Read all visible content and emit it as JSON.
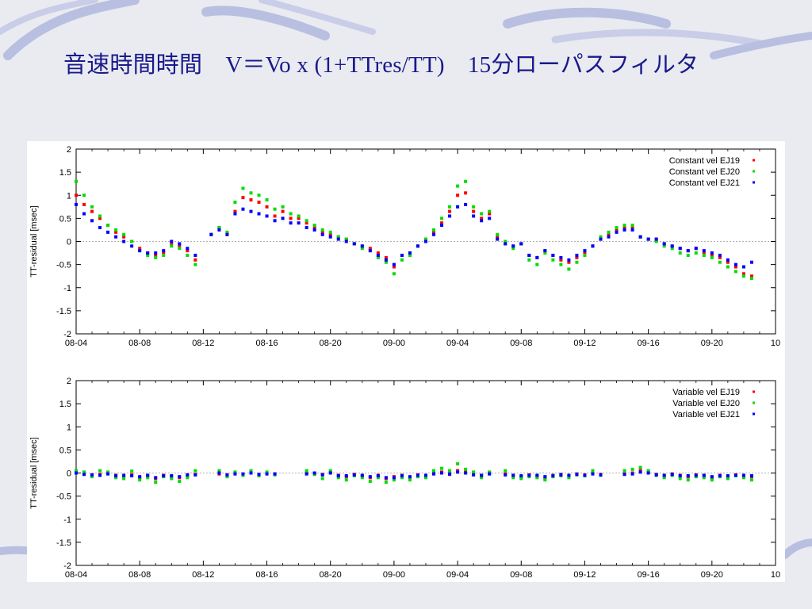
{
  "slide": {
    "title": "音速時間時間　V＝Vo x (1+TTres/TT)　15分ローパスフィルタ"
  },
  "colors": {
    "EJ19": "#ff0000",
    "EJ20": "#00dd00",
    "EJ21": "#0000ff",
    "title": "#1a1a8c",
    "zero_line": "#999999"
  },
  "chart_data": [
    {
      "type": "scatter",
      "xlabel": "",
      "ylabel": "TT-residual [msec]",
      "ylim": [
        -2,
        2
      ],
      "yticks": [
        "2",
        "1.5",
        "1",
        "0.5",
        "0",
        "-0.5",
        "-1",
        "-1.5",
        "-2"
      ],
      "xticks": [
        "08-04",
        "08-08",
        "08-12",
        "08-16",
        "08-20",
        "09-00",
        "09-04",
        "09-08",
        "09-12",
        "09-16",
        "09-20",
        "10"
      ],
      "zero_line": "dotted",
      "legend_position": "top-right",
      "series": [
        {
          "name": "Constant vel EJ19",
          "x": [
            0,
            0.5,
            1,
            1.5,
            2,
            2.5,
            3,
            3.5,
            4,
            4.5,
            5,
            5.5,
            6,
            6.5,
            7,
            7.5,
            8.5,
            9,
            9.5,
            10,
            10.5,
            11,
            11.5,
            12,
            12.5,
            13,
            13.5,
            14,
            14.5,
            15,
            15.5,
            16,
            16.5,
            17,
            17.5,
            18,
            18.5,
            19,
            19.5,
            20,
            20.5,
            21,
            21.5,
            22,
            22.5,
            23,
            23.5,
            24,
            24.5,
            25,
            25.5,
            26,
            26.5,
            27,
            27.5,
            28,
            28.5,
            29,
            29.5,
            30,
            30.5,
            31,
            31.5,
            32,
            32.5,
            33,
            33.5,
            34,
            34.5,
            35,
            35.5,
            36,
            36.5,
            37,
            37.5,
            38,
            38.5,
            39,
            39.5,
            40,
            40.5,
            41,
            41.5,
            42,
            42.5
          ],
          "y": [
            1.0,
            0.8,
            0.65,
            0.5,
            0.35,
            0.2,
            0.1,
            0.0,
            -0.15,
            -0.25,
            -0.3,
            -0.25,
            -0.05,
            -0.1,
            -0.2,
            -0.4,
            0.15,
            0.3,
            0.15,
            0.65,
            0.95,
            0.9,
            0.85,
            0.75,
            0.55,
            0.65,
            0.5,
            0.5,
            0.4,
            0.3,
            0.2,
            0.15,
            0.1,
            0.05,
            -0.05,
            -0.1,
            -0.15,
            -0.25,
            -0.35,
            -0.55,
            -0.3,
            -0.25,
            -0.1,
            0.05,
            0.2,
            0.4,
            0.65,
            1.0,
            1.05,
            0.65,
            0.5,
            0.6,
            0.1,
            -0.05,
            -0.1,
            -0.05,
            -0.3,
            -0.35,
            -0.2,
            -0.3,
            -0.4,
            -0.45,
            -0.35,
            -0.25,
            -0.1,
            0.05,
            0.15,
            0.25,
            0.3,
            0.3,
            0.1,
            0.05,
            0.05,
            -0.05,
            -0.1,
            -0.15,
            -0.2,
            -0.15,
            -0.25,
            -0.3,
            -0.35,
            -0.45,
            -0.55,
            -0.7,
            -0.75
          ]
        },
        {
          "name": "Constant vel EJ20",
          "x": [
            0,
            0.5,
            1,
            1.5,
            2,
            2.5,
            3,
            3.5,
            4,
            4.5,
            5,
            5.5,
            6,
            6.5,
            7,
            7.5,
            8.5,
            9,
            9.5,
            10,
            10.5,
            11,
            11.5,
            12,
            12.5,
            13,
            13.5,
            14,
            14.5,
            15,
            15.5,
            16,
            16.5,
            17,
            17.5,
            18,
            18.5,
            19,
            19.5,
            20,
            20.5,
            21,
            21.5,
            22,
            22.5,
            23,
            23.5,
            24,
            24.5,
            25,
            25.5,
            26,
            26.5,
            27,
            27.5,
            28,
            28.5,
            29,
            29.5,
            30,
            30.5,
            31,
            31.5,
            32,
            32.5,
            33,
            33.5,
            34,
            34.5,
            35,
            35.5,
            36,
            36.5,
            37,
            37.5,
            38,
            38.5,
            39,
            39.5,
            40,
            40.5,
            41,
            41.5,
            42,
            42.5
          ],
          "y": [
            1.3,
            1.0,
            0.75,
            0.55,
            0.35,
            0.25,
            0.15,
            0.0,
            -0.2,
            -0.3,
            -0.35,
            -0.3,
            -0.1,
            -0.15,
            -0.3,
            -0.5,
            0.15,
            0.3,
            0.2,
            0.85,
            1.15,
            1.05,
            1.0,
            0.9,
            0.7,
            0.75,
            0.6,
            0.55,
            0.45,
            0.35,
            0.25,
            0.2,
            0.1,
            0.05,
            -0.05,
            -0.15,
            -0.2,
            -0.35,
            -0.45,
            -0.7,
            -0.4,
            -0.3,
            -0.1,
            0.05,
            0.25,
            0.5,
            0.75,
            1.2,
            1.3,
            0.75,
            0.6,
            0.65,
            0.15,
            0.0,
            -0.15,
            -0.05,
            -0.4,
            -0.5,
            -0.25,
            -0.4,
            -0.5,
            -0.6,
            -0.45,
            -0.3,
            -0.1,
            0.1,
            0.2,
            0.3,
            0.35,
            0.35,
            0.1,
            0.05,
            0.0,
            -0.1,
            -0.15,
            -0.25,
            -0.3,
            -0.25,
            -0.3,
            -0.35,
            -0.45,
            -0.55,
            -0.65,
            -0.75,
            -0.8
          ]
        },
        {
          "name": "Constant vel EJ21",
          "x": [
            0,
            0.5,
            1,
            1.5,
            2,
            2.5,
            3,
            3.5,
            4,
            4.5,
            5,
            5.5,
            6,
            6.5,
            7,
            7.5,
            8.5,
            9,
            9.5,
            10,
            10.5,
            11,
            11.5,
            12,
            12.5,
            13,
            13.5,
            14,
            14.5,
            15,
            15.5,
            16,
            16.5,
            17,
            17.5,
            18,
            18.5,
            19,
            19.5,
            20,
            20.5,
            21,
            21.5,
            22,
            22.5,
            23,
            23.5,
            24,
            24.5,
            25,
            25.5,
            26,
            26.5,
            27,
            27.5,
            28,
            28.5,
            29,
            29.5,
            30,
            30.5,
            31,
            31.5,
            32,
            32.5,
            33,
            33.5,
            34,
            34.5,
            35,
            35.5,
            36,
            36.5,
            37,
            37.5,
            38,
            38.5,
            39,
            39.5,
            40,
            40.5,
            41,
            41.5,
            42,
            42.5
          ],
          "y": [
            0.8,
            0.6,
            0.45,
            0.3,
            0.2,
            0.1,
            0.0,
            -0.1,
            -0.2,
            -0.25,
            -0.25,
            -0.2,
            0.0,
            -0.05,
            -0.15,
            -0.3,
            0.15,
            0.25,
            0.15,
            0.6,
            0.7,
            0.65,
            0.6,
            0.55,
            0.45,
            0.5,
            0.4,
            0.4,
            0.3,
            0.25,
            0.15,
            0.1,
            0.05,
            0.0,
            -0.05,
            -0.1,
            -0.2,
            -0.3,
            -0.4,
            -0.5,
            -0.3,
            -0.25,
            -0.1,
            0.0,
            0.15,
            0.35,
            0.55,
            0.75,
            0.8,
            0.55,
            0.45,
            0.5,
            0.05,
            -0.05,
            -0.1,
            -0.05,
            -0.3,
            -0.35,
            -0.2,
            -0.3,
            -0.35,
            -0.4,
            -0.3,
            -0.2,
            -0.1,
            0.05,
            0.1,
            0.2,
            0.25,
            0.25,
            0.1,
            0.05,
            0.05,
            -0.05,
            -0.1,
            -0.15,
            -0.2,
            -0.15,
            -0.2,
            -0.25,
            -0.3,
            -0.4,
            -0.5,
            -0.55,
            -0.45
          ]
        }
      ]
    },
    {
      "type": "scatter",
      "xlabel": "",
      "ylabel": "TT-residual [msec]",
      "ylim": [
        -2,
        2
      ],
      "yticks": [
        "2",
        "1.5",
        "1",
        "0.5",
        "0",
        "-0.5",
        "-1",
        "-1.5",
        "-2"
      ],
      "xticks": [
        "08-04",
        "08-08",
        "08-12",
        "08-16",
        "08-20",
        "09-00",
        "09-04",
        "09-08",
        "09-12",
        "09-16",
        "09-20",
        "10"
      ],
      "zero_line": "dotted",
      "legend_position": "top-right",
      "series": [
        {
          "name": "Variable vel EJ19",
          "x": [
            0,
            0.5,
            1,
            1.5,
            2,
            2.5,
            3,
            3.5,
            4,
            4.5,
            5,
            5.5,
            6,
            6.5,
            7,
            7.5,
            9,
            9.5,
            10,
            10.5,
            11,
            11.5,
            12,
            12.5,
            14.5,
            15,
            15.5,
            16,
            16.5,
            17,
            17.5,
            18,
            18.5,
            19,
            19.5,
            20,
            20.5,
            21,
            21.5,
            22,
            22.5,
            23,
            23.5,
            24,
            24.5,
            25,
            25.5,
            26,
            27,
            27.5,
            28,
            28.5,
            29,
            29.5,
            30,
            30.5,
            31,
            31.5,
            32,
            32.5,
            33,
            34.5,
            35,
            35.5,
            36,
            36.5,
            37,
            37.5,
            38,
            38.5,
            39,
            39.5,
            40,
            40.5,
            41,
            41.5,
            42,
            42.5
          ],
          "y": [
            0.0,
            -0.02,
            -0.05,
            -0.03,
            0.0,
            -0.05,
            -0.08,
            -0.04,
            -0.1,
            -0.06,
            -0.12,
            -0.05,
            -0.08,
            -0.1,
            -0.05,
            -0.03,
            -0.02,
            -0.05,
            0.0,
            -0.03,
            0.02,
            -0.04,
            0.0,
            -0.02,
            0.0,
            -0.01,
            -0.03,
            0.02,
            -0.05,
            -0.08,
            -0.03,
            -0.06,
            -0.1,
            -0.05,
            -0.12,
            -0.08,
            -0.05,
            -0.1,
            -0.04,
            -0.06,
            0.0,
            0.02,
            -0.03,
            0.05,
            0.02,
            -0.02,
            -0.06,
            0.0,
            -0.02,
            -0.05,
            -0.08,
            -0.04,
            -0.06,
            -0.1,
            -0.05,
            -0.03,
            -0.06,
            -0.02,
            -0.04,
            0.0,
            -0.03,
            -0.02,
            0.0,
            0.05,
            0.02,
            -0.03,
            -0.06,
            -0.02,
            -0.05,
            -0.08,
            -0.04,
            -0.06,
            -0.1,
            -0.05,
            -0.08,
            -0.04,
            -0.06,
            -0.08
          ]
        },
        {
          "name": "Variable vel EJ20",
          "x": [
            0,
            0.5,
            1,
            1.5,
            2,
            2.5,
            3,
            3.5,
            4,
            4.5,
            5,
            5.5,
            6,
            6.5,
            7,
            7.5,
            9,
            9.5,
            10,
            10.5,
            11,
            11.5,
            12,
            12.5,
            14.5,
            15,
            15.5,
            16,
            16.5,
            17,
            17.5,
            18,
            18.5,
            19,
            19.5,
            20,
            20.5,
            21,
            21.5,
            22,
            22.5,
            23,
            23.5,
            24,
            24.5,
            25,
            25.5,
            26,
            27,
            27.5,
            28,
            28.5,
            29,
            29.5,
            30,
            30.5,
            31,
            31.5,
            32,
            32.5,
            33,
            34.5,
            35,
            35.5,
            36,
            36.5,
            37,
            37.5,
            38,
            38.5,
            39,
            39.5,
            40,
            40.5,
            41,
            41.5,
            42,
            42.5
          ],
          "y": [
            0.05,
            0.02,
            -0.08,
            0.05,
            0.02,
            -0.1,
            -0.12,
            0.04,
            -0.15,
            -0.1,
            -0.2,
            -0.08,
            -0.12,
            -0.18,
            -0.1,
            0.05,
            0.05,
            -0.08,
            0.02,
            -0.05,
            0.05,
            -0.06,
            0.02,
            -0.04,
            0.05,
            -0.03,
            -0.12,
            0.05,
            -0.1,
            -0.15,
            -0.06,
            -0.1,
            -0.18,
            -0.1,
            -0.2,
            -0.15,
            -0.1,
            -0.15,
            -0.08,
            -0.1,
            0.05,
            0.1,
            0.05,
            0.2,
            0.08,
            0.02,
            -0.1,
            0.02,
            0.05,
            -0.1,
            -0.12,
            -0.08,
            -0.1,
            -0.15,
            -0.08,
            -0.06,
            -0.1,
            -0.04,
            -0.06,
            0.05,
            -0.05,
            0.05,
            0.08,
            0.12,
            0.05,
            -0.05,
            -0.1,
            -0.05,
            -0.12,
            -0.15,
            -0.08,
            -0.1,
            -0.15,
            -0.08,
            -0.12,
            -0.06,
            -0.1,
            -0.15
          ]
        },
        {
          "name": "Variable vel EJ21",
          "x": [
            0,
            0.5,
            1,
            1.5,
            2,
            2.5,
            3,
            3.5,
            4,
            4.5,
            5,
            5.5,
            6,
            6.5,
            7,
            7.5,
            9,
            9.5,
            10,
            10.5,
            11,
            11.5,
            12,
            12.5,
            14.5,
            15,
            15.5,
            16,
            16.5,
            17,
            17.5,
            18,
            18.5,
            19,
            19.5,
            20,
            20.5,
            21,
            21.5,
            22,
            22.5,
            23,
            23.5,
            24,
            24.5,
            25,
            25.5,
            26,
            27,
            27.5,
            28,
            28.5,
            29,
            29.5,
            30,
            30.5,
            31,
            31.5,
            32,
            32.5,
            33,
            34.5,
            35,
            35.5,
            36,
            36.5,
            37,
            37.5,
            38,
            38.5,
            39,
            39.5,
            40,
            40.5,
            41,
            41.5,
            42,
            42.5
          ],
          "y": [
            0.0,
            -0.03,
            -0.04,
            -0.05,
            -0.02,
            -0.06,
            -0.05,
            -0.06,
            -0.08,
            -0.05,
            -0.1,
            -0.06,
            -0.06,
            -0.08,
            -0.04,
            -0.04,
            0.0,
            -0.04,
            -0.02,
            -0.02,
            0.0,
            -0.03,
            -0.02,
            -0.02,
            -0.02,
            0.0,
            -0.04,
            0.0,
            -0.06,
            -0.06,
            -0.04,
            -0.05,
            -0.08,
            -0.06,
            -0.1,
            -0.1,
            -0.06,
            -0.08,
            -0.05,
            -0.05,
            -0.02,
            0.0,
            -0.02,
            0.02,
            0.0,
            -0.04,
            -0.05,
            -0.02,
            -0.04,
            -0.05,
            -0.06,
            -0.05,
            -0.05,
            -0.08,
            -0.06,
            -0.04,
            -0.05,
            -0.03,
            -0.05,
            -0.02,
            -0.04,
            -0.03,
            -0.02,
            0.02,
            0.0,
            -0.04,
            -0.05,
            -0.03,
            -0.06,
            -0.06,
            -0.05,
            -0.05,
            -0.08,
            -0.06,
            -0.06,
            -0.05,
            -0.05,
            -0.06
          ]
        }
      ]
    }
  ]
}
